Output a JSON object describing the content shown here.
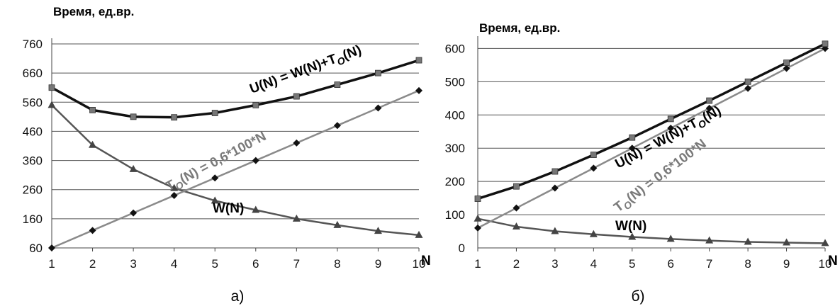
{
  "chart_data": [
    {
      "type": "line",
      "panel_label": "а)",
      "ylabel": "Время, ед.вр.",
      "xlabel": "N",
      "x": [
        1,
        2,
        3,
        4,
        5,
        6,
        7,
        8,
        9,
        10
      ],
      "yticks": [
        60,
        160,
        260,
        360,
        460,
        560,
        660,
        760
      ],
      "ylim": [
        60,
        760
      ],
      "grid": true,
      "series": [
        {
          "label": "U(N) = W(N)+T",
          "label_sub": "O",
          "label_tail": "(N)",
          "color": "#111111",
          "marker": "square",
          "values": [
            610,
            533,
            510,
            508,
            523,
            550,
            580,
            620,
            660,
            704
          ]
        },
        {
          "label": "T",
          "label_sub": "O",
          "label_tail": "(N) = 0,6*100*N",
          "color": "#8a8a8a",
          "marker": "diamond",
          "values": [
            60,
            120,
            180,
            240,
            300,
            360,
            420,
            480,
            540,
            600
          ]
        },
        {
          "label": "W(N)",
          "label_sub": "",
          "label_tail": "",
          "color": "#555555",
          "marker": "triangle",
          "values": [
            550,
            413,
            330,
            265,
            222,
            190,
            160,
            138,
            118,
            104
          ]
        }
      ]
    },
    {
      "type": "line",
      "panel_label": "б)",
      "ylabel": "Время, ед.вр.",
      "xlabel": "N",
      "x": [
        1,
        2,
        3,
        4,
        5,
        6,
        7,
        8,
        9,
        10
      ],
      "yticks": [
        0,
        100,
        200,
        300,
        400,
        500,
        600
      ],
      "ylim": [
        0,
        620
      ],
      "grid": true,
      "series": [
        {
          "label": "U(N) = W(N)+T",
          "label_sub": "O",
          "label_tail": "(N)",
          "color": "#111111",
          "marker": "square",
          "values": [
            148,
            185,
            230,
            280,
            332,
            388,
            443,
            500,
            557,
            614
          ]
        },
        {
          "label": "T",
          "label_sub": "O",
          "label_tail": "(N) = 0,6*100*N",
          "color": "#8a8a8a",
          "marker": "diamond",
          "values": [
            60,
            120,
            180,
            240,
            300,
            360,
            420,
            480,
            540,
            600
          ]
        },
        {
          "label": "W(N)",
          "label_sub": "",
          "label_tail": "",
          "color": "#555555",
          "marker": "triangle",
          "values": [
            88,
            64,
            50,
            41,
            33,
            27,
            22,
            18,
            16,
            14
          ]
        }
      ]
    }
  ]
}
